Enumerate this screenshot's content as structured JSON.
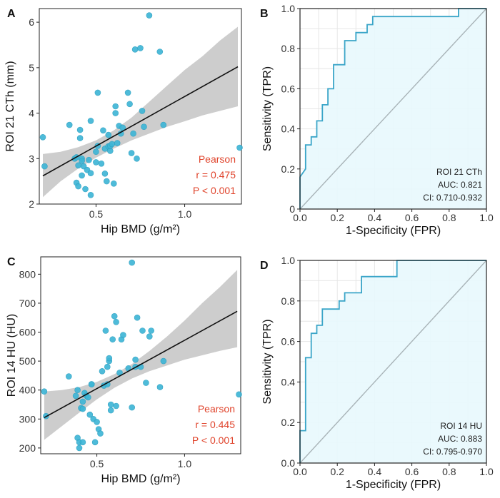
{
  "colors": {
    "point": "#3fb6d6",
    "point_stroke": "#2a9fc0",
    "ci_band": "#c8c8c8",
    "fit_line": "#111111",
    "roc_line": "#3aa5c8",
    "roc_fill": "#e8f8fd",
    "diagonal": "#a9b4b8",
    "grid": "#e6e6e6",
    "stat_text": "#e0442c"
  },
  "panels": {
    "A": {
      "letter": "A",
      "stat_title": "Pearson",
      "stat_r": "r = 0.475",
      "stat_p": "P < 0.001"
    },
    "B": {
      "letter": "B",
      "legend_name": "ROI 21 CTh",
      "legend_auc": "AUC: 0.821",
      "legend_ci": "CI: 0.710-0.932"
    },
    "C": {
      "letter": "C",
      "stat_title": "Pearson",
      "stat_r": "r = 0.445",
      "stat_p": "P < 0.001"
    },
    "D": {
      "letter": "D",
      "legend_name": "ROI 14 HU",
      "legend_auc": "AUC: 0.883",
      "legend_ci": "CI: 0.795-0.970"
    }
  },
  "chart_data": [
    {
      "id": "A",
      "type": "scatter",
      "title": "",
      "xlabel": "Hip BMD (g/m²)",
      "ylabel": "ROI 21 CTh (mm)",
      "xlim": [
        0.18,
        1.32
      ],
      "ylim": [
        2.0,
        6.3
      ],
      "xticks": [
        0.5,
        1.0
      ],
      "xtick_labels": [
        "0.5",
        "1.0"
      ],
      "yticks": [
        2,
        3,
        4,
        5,
        6
      ],
      "ytick_labels": [
        "2",
        "3",
        "4",
        "5",
        "6"
      ],
      "fit": {
        "x": [
          0.2,
          1.3
        ],
        "y": [
          2.62,
          5.02
        ]
      },
      "ci_band": {
        "x": [
          0.2,
          0.3,
          0.4,
          0.5,
          0.6,
          0.7,
          0.8,
          0.9,
          1.0,
          1.1,
          1.2,
          1.3
        ],
        "lower": [
          2.15,
          2.5,
          2.78,
          3.02,
          3.22,
          3.4,
          3.55,
          3.7,
          3.82,
          3.95,
          4.05,
          4.15
        ],
        "upper": [
          3.1,
          3.15,
          3.25,
          3.4,
          3.62,
          3.9,
          4.25,
          4.6,
          4.95,
          5.25,
          5.6,
          5.9
        ]
      },
      "points": [
        [
          0.2,
          3.47
        ],
        [
          0.21,
          2.83
        ],
        [
          0.35,
          3.74
        ],
        [
          0.38,
          3.0
        ],
        [
          0.39,
          3.03
        ],
        [
          0.39,
          2.47
        ],
        [
          0.4,
          2.39
        ],
        [
          0.4,
          2.85
        ],
        [
          0.41,
          3.45
        ],
        [
          0.41,
          3.63
        ],
        [
          0.42,
          2.63
        ],
        [
          0.42,
          3.0
        ],
        [
          0.42,
          2.95
        ],
        [
          0.43,
          2.83
        ],
        [
          0.44,
          2.33
        ],
        [
          0.45,
          2.75
        ],
        [
          0.46,
          2.97
        ],
        [
          0.47,
          3.83
        ],
        [
          0.47,
          2.68
        ],
        [
          0.47,
          2.2
        ],
        [
          0.5,
          2.92
        ],
        [
          0.5,
          3.15
        ],
        [
          0.51,
          3.28
        ],
        [
          0.51,
          4.45
        ],
        [
          0.53,
          2.89
        ],
        [
          0.54,
          3.62
        ],
        [
          0.55,
          3.22
        ],
        [
          0.55,
          2.67
        ],
        [
          0.56,
          2.5
        ],
        [
          0.57,
          3.27
        ],
        [
          0.57,
          3.52
        ],
        [
          0.58,
          3.17
        ],
        [
          0.58,
          3.28
        ],
        [
          0.59,
          3.32
        ],
        [
          0.6,
          2.45
        ],
        [
          0.61,
          4.15
        ],
        [
          0.61,
          4.0
        ],
        [
          0.62,
          3.34
        ],
        [
          0.63,
          3.72
        ],
        [
          0.64,
          3.55
        ],
        [
          0.65,
          3.68
        ],
        [
          0.68,
          4.45
        ],
        [
          0.69,
          4.2
        ],
        [
          0.7,
          3.12
        ],
        [
          0.71,
          3.55
        ],
        [
          0.72,
          5.4
        ],
        [
          0.73,
          3.0
        ],
        [
          0.75,
          5.43
        ],
        [
          0.76,
          4.05
        ],
        [
          0.77,
          3.7
        ],
        [
          0.8,
          6.15
        ],
        [
          0.86,
          5.35
        ],
        [
          0.88,
          3.74
        ],
        [
          1.31,
          3.24
        ]
      ],
      "annotation": [
        "Pearson",
        "r = 0.475",
        "P < 0.001"
      ]
    },
    {
      "id": "B",
      "type": "line",
      "title": "",
      "xlabel": "1-Specificity (FPR)",
      "ylabel": "Sensitivity (TPR)",
      "xlim": [
        0,
        1
      ],
      "ylim": [
        0,
        1
      ],
      "xticks": [
        0.0,
        0.2,
        0.4,
        0.6,
        0.8,
        1.0
      ],
      "xtick_labels": [
        "0.0",
        "0.2",
        "0.4",
        "0.6",
        "0.8",
        "1.0"
      ],
      "yticks": [
        0.0,
        0.2,
        0.4,
        0.6,
        0.8,
        1.0
      ],
      "ytick_labels": [
        "0",
        "0.2",
        "0.4",
        "0.6",
        "0.8",
        "1.0"
      ],
      "series": [
        {
          "name": "ROI 21 CTh",
          "auc": 0.821,
          "ci": "0.710-0.932",
          "x": [
            0,
            0,
            0.03,
            0.03,
            0.06,
            0.06,
            0.09,
            0.09,
            0.12,
            0.12,
            0.15,
            0.15,
            0.18,
            0.18,
            0.24,
            0.24,
            0.3,
            0.3,
            0.36,
            0.36,
            0.39,
            0.39,
            0.42,
            0.42,
            0.85,
            0.85,
            1.0,
            1.0
          ],
          "y": [
            0,
            0.16,
            0.2,
            0.32,
            0.32,
            0.36,
            0.36,
            0.44,
            0.44,
            0.52,
            0.52,
            0.6,
            0.6,
            0.72,
            0.72,
            0.84,
            0.84,
            0.88,
            0.88,
            0.92,
            0.92,
            0.96,
            0.96,
            0.96,
            0.96,
            1.0,
            1.0,
            1.0
          ]
        }
      ],
      "reference_line": {
        "x": [
          0,
          1
        ],
        "y": [
          0,
          1
        ]
      },
      "legend": [
        "ROI 21 CTh",
        "AUC: 0.821",
        "CI: 0.710-0.932"
      ]
    },
    {
      "id": "C",
      "type": "scatter",
      "title": "",
      "xlabel": "Hip BMD (g/m²)",
      "ylabel": "ROI 14 HU (HU)",
      "xlim": [
        0.18,
        1.32
      ],
      "ylim": [
        180,
        860
      ],
      "xticks": [
        0.5,
        1.0
      ],
      "xtick_labels": [
        "0.5",
        "1.0"
      ],
      "yticks": [
        200,
        300,
        400,
        500,
        600,
        700,
        800
      ],
      "ytick_labels": [
        "200",
        "300",
        "400",
        "500",
        "600",
        "700",
        "800"
      ],
      "fit": {
        "x": [
          0.2,
          1.3
        ],
        "y": [
          305,
          672
        ]
      },
      "ci_band": {
        "x": [
          0.2,
          0.3,
          0.4,
          0.5,
          0.6,
          0.7,
          0.8,
          0.9,
          1.0,
          1.1,
          1.2,
          1.3
        ],
        "lower": [
          228,
          275,
          322,
          368,
          408,
          440,
          465,
          485,
          505,
          520,
          535,
          548
        ],
        "upper": [
          395,
          400,
          410,
          428,
          455,
          490,
          535,
          585,
          640,
          700,
          755,
          815
        ]
      },
      "points": [
        [
          0.2,
          395
        ],
        [
          0.21,
          310
        ],
        [
          0.34,
          447
        ],
        [
          0.38,
          380
        ],
        [
          0.39,
          400
        ],
        [
          0.39,
          235
        ],
        [
          0.4,
          220
        ],
        [
          0.4,
          200
        ],
        [
          0.41,
          338
        ],
        [
          0.42,
          335
        ],
        [
          0.42,
          360
        ],
        [
          0.42,
          220
        ],
        [
          0.43,
          390
        ],
        [
          0.44,
          380
        ],
        [
          0.45,
          375
        ],
        [
          0.46,
          315
        ],
        [
          0.47,
          420
        ],
        [
          0.47,
          420
        ],
        [
          0.48,
          300
        ],
        [
          0.49,
          220
        ],
        [
          0.5,
          290
        ],
        [
          0.51,
          265
        ],
        [
          0.52,
          250
        ],
        [
          0.53,
          465
        ],
        [
          0.54,
          415
        ],
        [
          0.55,
          605
        ],
        [
          0.56,
          420
        ],
        [
          0.56,
          480
        ],
        [
          0.57,
          500
        ],
        [
          0.57,
          510
        ],
        [
          0.58,
          330
        ],
        [
          0.58,
          350
        ],
        [
          0.59,
          575
        ],
        [
          0.6,
          655
        ],
        [
          0.61,
          635
        ],
        [
          0.61,
          345
        ],
        [
          0.63,
          460
        ],
        [
          0.64,
          575
        ],
        [
          0.65,
          590
        ],
        [
          0.68,
          475
        ],
        [
          0.7,
          340
        ],
        [
          0.7,
          840
        ],
        [
          0.72,
          505
        ],
        [
          0.72,
          480
        ],
        [
          0.73,
          650
        ],
        [
          0.75,
          480
        ],
        [
          0.76,
          605
        ],
        [
          0.78,
          425
        ],
        [
          0.8,
          585
        ],
        [
          0.81,
          605
        ],
        [
          0.86,
          410
        ],
        [
          0.88,
          500
        ],
        [
          1.31,
          385
        ]
      ],
      "annotation": [
        "Pearson",
        "r = 0.445",
        "P < 0.001"
      ]
    },
    {
      "id": "D",
      "type": "line",
      "title": "",
      "xlabel": "1-Specificity (FPR)",
      "ylabel": "Sensitivity (TPR)",
      "xlim": [
        0,
        1
      ],
      "ylim": [
        0,
        1
      ],
      "xticks": [
        0.0,
        0.2,
        0.4,
        0.6,
        0.8,
        1.0
      ],
      "xtick_labels": [
        "0.0",
        "0.2",
        "0.4",
        "0.6",
        "0.8",
        "1.0"
      ],
      "yticks": [
        0.0,
        0.2,
        0.4,
        0.6,
        0.8,
        1.0
      ],
      "ytick_labels": [
        "0.0",
        "0.2",
        "0.4",
        "0.6",
        "0.8",
        "1.0"
      ],
      "series": [
        {
          "name": "ROI 14 HU",
          "auc": 0.883,
          "ci": "0.795-0.970",
          "x": [
            0,
            0,
            0.03,
            0.03,
            0.06,
            0.06,
            0.09,
            0.09,
            0.12,
            0.12,
            0.15,
            0.15,
            0.21,
            0.21,
            0.24,
            0.24,
            0.33,
            0.33,
            0.52,
            0.52,
            1.0
          ],
          "y": [
            0,
            0.16,
            0.16,
            0.52,
            0.52,
            0.64,
            0.64,
            0.68,
            0.68,
            0.76,
            0.76,
            0.76,
            0.76,
            0.8,
            0.8,
            0.84,
            0.84,
            0.92,
            0.92,
            1.0,
            1.0
          ]
        }
      ],
      "reference_line": {
        "x": [
          0,
          1
        ],
        "y": [
          0,
          1
        ]
      },
      "legend": [
        "ROI 14 HU",
        "AUC: 0.883",
        "CI: 0.795-0.970"
      ]
    }
  ]
}
